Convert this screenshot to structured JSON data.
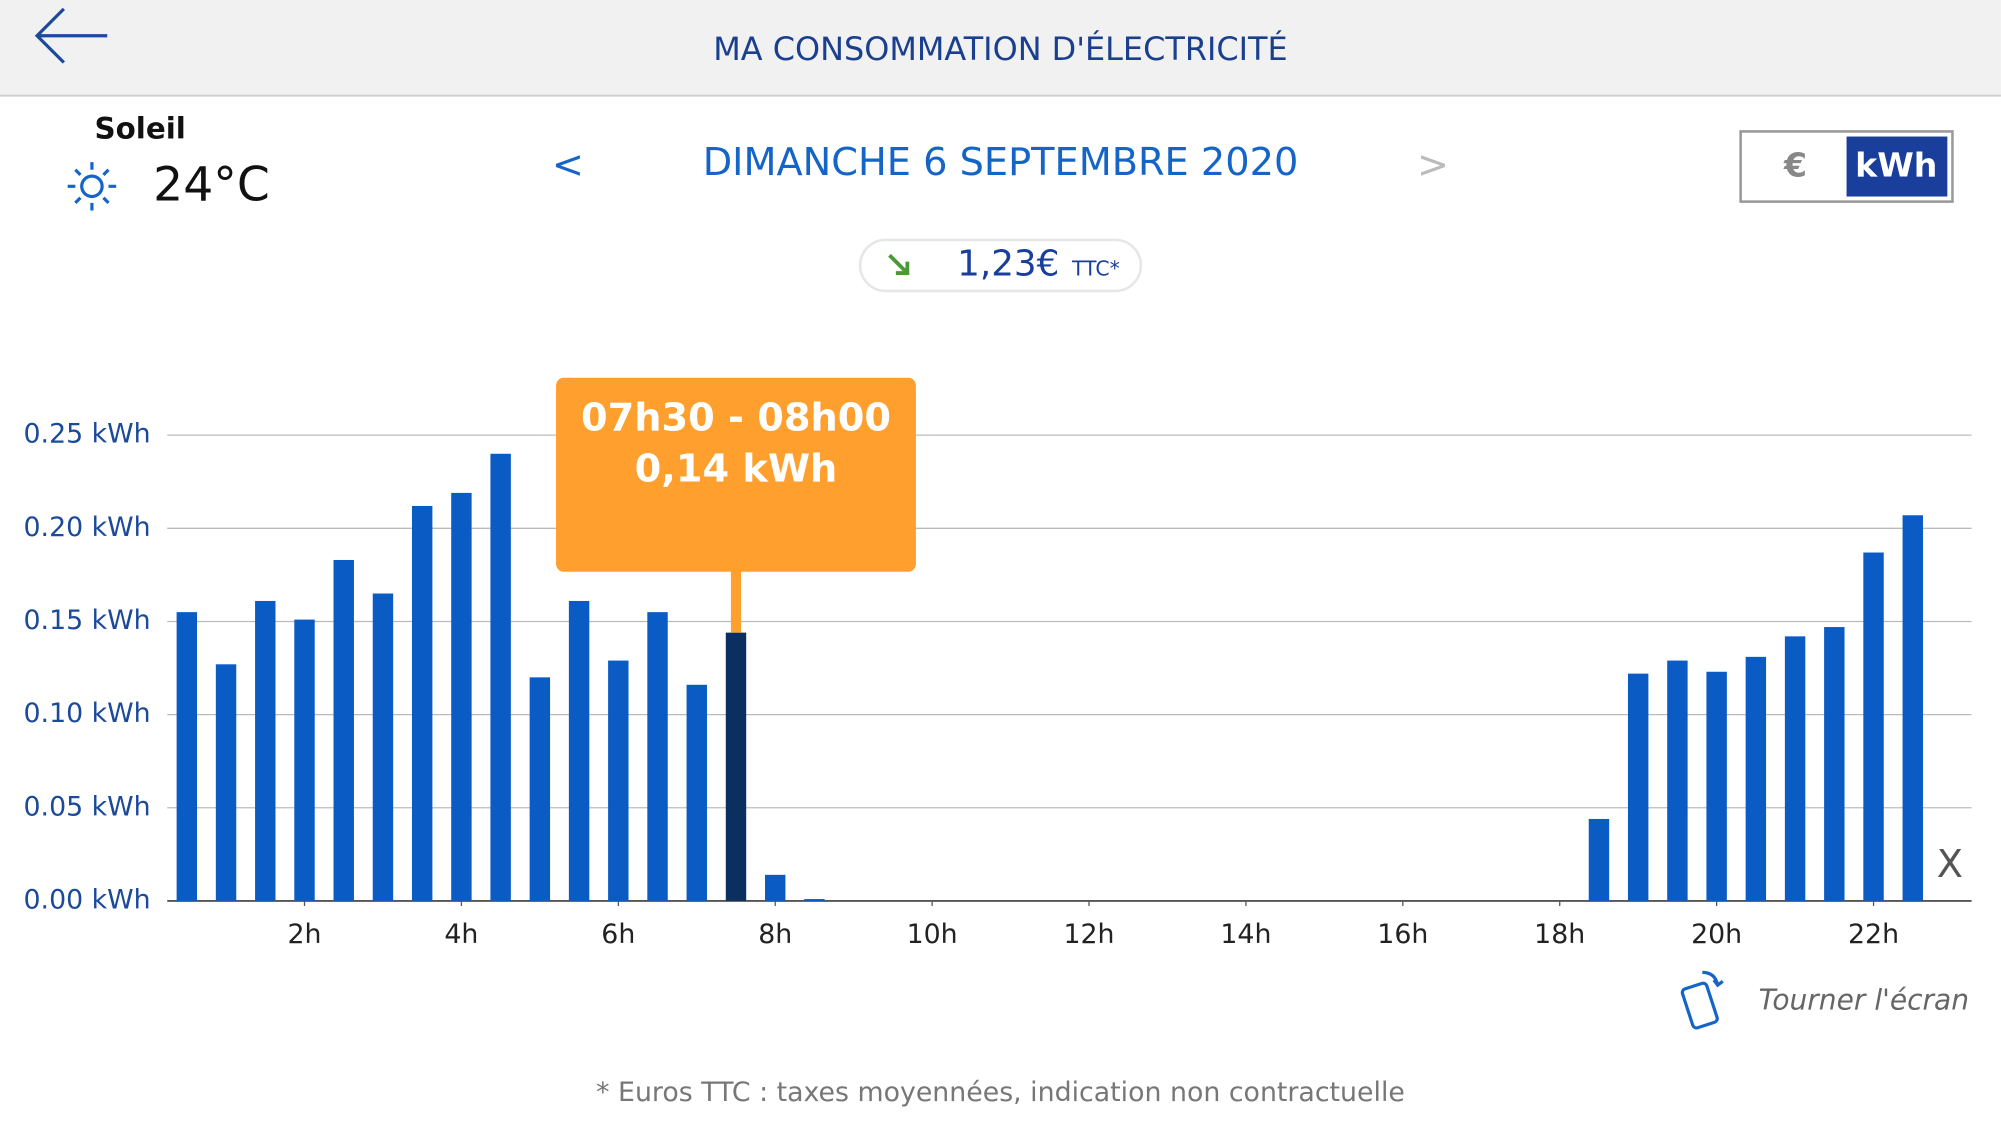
{
  "header": {
    "title": "MA CONSOMMATION D'ÉLECTRICITÉ"
  },
  "weather": {
    "condition": "Soleil",
    "temperature": "24°C"
  },
  "date_nav": {
    "prev": "<",
    "date": "DIMANCHE 6 SEPTEMBRE 2020",
    "next": ">"
  },
  "unit_toggle": {
    "euro": "€",
    "kwh": "kWh"
  },
  "cost_badge": {
    "amount": "1,23€",
    "suffix": "TTC*"
  },
  "close": "X",
  "rotate_hint": "Tourner l'écran",
  "footnote": "* Euros TTC : taxes moyennées, indication non contractuelle",
  "chart_data": {
    "type": "bar",
    "x": [
      0.5,
      1,
      1.5,
      2,
      2.5,
      3,
      3.5,
      4,
      4.5,
      5,
      5.5,
      6,
      6.5,
      7,
      7.5,
      8,
      8.5,
      9,
      9.5,
      10,
      10.5,
      11,
      11.5,
      12,
      12.5,
      13,
      13.5,
      14,
      14.5,
      15,
      15.5,
      16,
      16.5,
      17,
      17.5,
      18,
      18.5,
      19,
      19.5,
      20,
      20.5,
      21,
      21.5,
      22,
      22.5
    ],
    "values": [
      0.155,
      0.127,
      0.161,
      0.151,
      0.183,
      0.165,
      0.212,
      0.219,
      0.24,
      0.12,
      0.161,
      0.129,
      0.155,
      0.116,
      0.144,
      0.014,
      0.001,
      0,
      0,
      0,
      0,
      0,
      0,
      0,
      0,
      0,
      0,
      0,
      0,
      0,
      0,
      0,
      0,
      0,
      0,
      0,
      0.044,
      0.122,
      0.129,
      0.123,
      0.131,
      0.142,
      0.147,
      0.187,
      0.207
    ],
    "color": "#0a5bc4",
    "highlight_color": "#0b2f5e",
    "xlim": [
      0.25,
      23.25
    ],
    "xticks": [
      {
        "value": 2,
        "label": "2h"
      },
      {
        "value": 4,
        "label": "4h"
      },
      {
        "value": 6,
        "label": "6h"
      },
      {
        "value": 8,
        "label": "8h"
      },
      {
        "value": 10,
        "label": "10h"
      },
      {
        "value": 12,
        "label": "12h"
      },
      {
        "value": 14,
        "label": "14h"
      },
      {
        "value": 16,
        "label": "16h"
      },
      {
        "value": 18,
        "label": "18h"
      },
      {
        "value": 20,
        "label": "20h"
      },
      {
        "value": 22,
        "label": "22h"
      }
    ],
    "ylim": [
      0,
      0.25
    ],
    "yticks": [
      {
        "value": 0,
        "label": "0.00 kWh"
      },
      {
        "value": 0.05,
        "label": "0.05 kWh"
      },
      {
        "value": 0.1,
        "label": "0.10 kWh"
      },
      {
        "value": 0.15,
        "label": "0.15 kWh"
      },
      {
        "value": 0.2,
        "label": "0.20 kWh"
      },
      {
        "value": 0.25,
        "label": "0.25 kWh"
      }
    ],
    "grid": true,
    "tooltip": {
      "x": 7.5,
      "title": "07h30 - 08h00",
      "label": "0,14 kWh"
    }
  }
}
